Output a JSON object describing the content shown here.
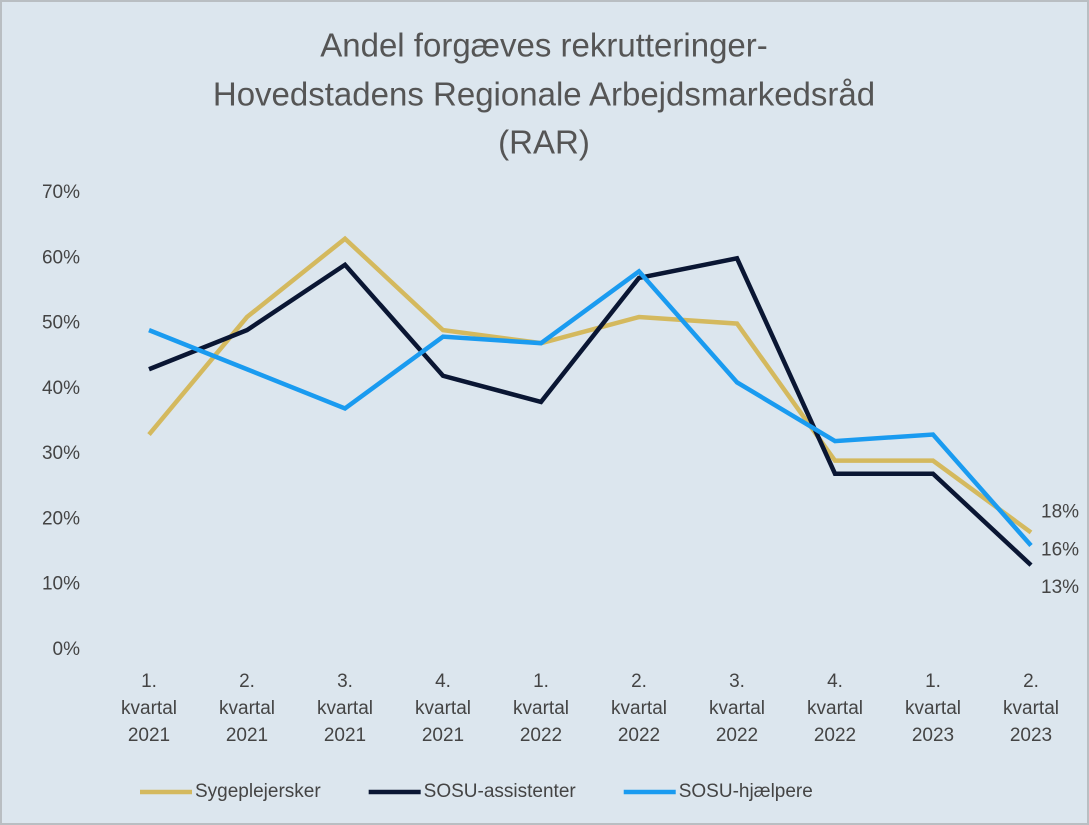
{
  "chart_data": {
    "type": "line",
    "title": [
      "Andel forgæves rekrutteringer-",
      "Hovedstadens Regionale Arbejdsmarkedsråd",
      "(RAR)"
    ],
    "categories": [
      "1. kvartal 2021",
      "2. kvartal 2021",
      "3. kvartal 2021",
      "4. kvartal 2021",
      "1. kvartal 2022",
      "2. kvartal 2022",
      "3. kvartal 2022",
      "4. kvartal 2022",
      "1. kvartal 2023",
      "2. kvartal 2023"
    ],
    "series": [
      {
        "name": "Sygeplejersker",
        "color": "#d4b95e",
        "values": [
          33,
          51,
          63,
          49,
          47,
          51,
          50,
          29,
          29,
          18
        ],
        "value_labels": [
          null,
          null,
          null,
          null,
          null,
          null,
          null,
          null,
          null,
          "18%"
        ]
      },
      {
        "name": "SOSU-assistenter",
        "color": "#0a1633",
        "values": [
          43,
          49,
          59,
          42,
          38,
          57,
          60,
          27,
          27,
          13
        ],
        "value_labels": [
          null,
          null,
          null,
          null,
          null,
          null,
          null,
          null,
          null,
          "13%"
        ]
      },
      {
        "name": "SOSU-hjælpere",
        "color": "#1a9bf0",
        "values": [
          49,
          43,
          37,
          48,
          47,
          58,
          41,
          32,
          33,
          16
        ],
        "value_labels": [
          null,
          null,
          null,
          null,
          null,
          null,
          null,
          null,
          null,
          "16%"
        ]
      }
    ],
    "ylim": [
      0,
      70
    ],
    "yticks": [
      {
        "value": 0,
        "label": "0%"
      },
      {
        "value": 10,
        "label": "10%"
      },
      {
        "value": 20,
        "label": "20%"
      },
      {
        "value": 30,
        "label": "30%"
      },
      {
        "value": 40,
        "label": "40%"
      },
      {
        "value": 50,
        "label": "50%"
      },
      {
        "value": 60,
        "label": "60%"
      },
      {
        "value": 70,
        "label": "70%"
      }
    ],
    "grid": false,
    "legend": "bottom"
  }
}
